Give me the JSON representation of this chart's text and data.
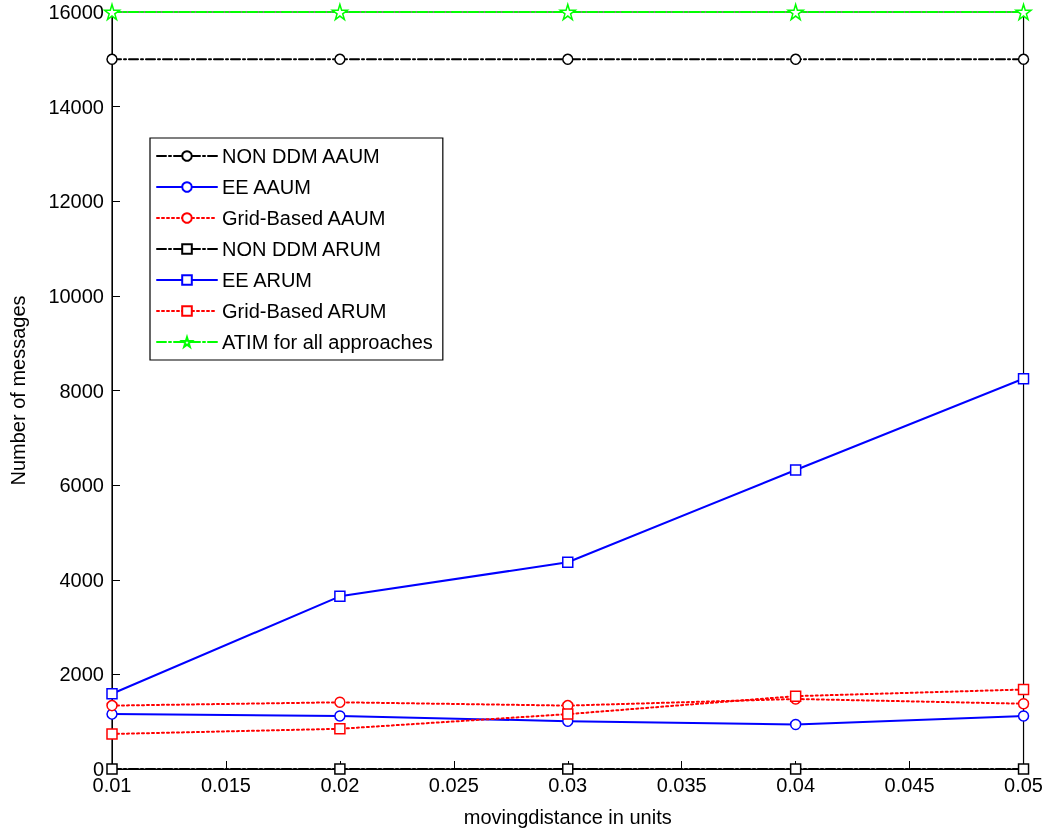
{
  "chart_data": {
    "type": "line",
    "xlabel": "movingdistance in units",
    "ylabel": "Number of messages",
    "x": [
      0.01,
      0.02,
      0.03,
      0.04,
      0.05
    ],
    "series": [
      {
        "name": "NON DDM AAUM",
        "color": "#000000",
        "marker": "circle",
        "line_style": "dashed",
        "values": [
          15000,
          15000,
          15000,
          15000,
          15000
        ]
      },
      {
        "name": "EE AAUM",
        "color": "#0000ff",
        "marker": "circle",
        "line_style": "solid",
        "values": [
          1160,
          1120,
          1010,
          940,
          1120
        ]
      },
      {
        "name": "Grid-Based AAUM",
        "color": "#ff0000",
        "marker": "circle",
        "line_style": "dotted",
        "values": [
          1340,
          1410,
          1340,
          1480,
          1380
        ]
      },
      {
        "name": "NON DDM ARUM",
        "color": "#000000",
        "marker": "square",
        "line_style": "dashed",
        "values": [
          0,
          0,
          0,
          0,
          0
        ]
      },
      {
        "name": "EE ARUM",
        "color": "#0000ff",
        "marker": "square",
        "line_style": "solid",
        "values": [
          1590,
          3650,
          4370,
          6320,
          8250
        ]
      },
      {
        "name": "Grid-Based ARUM",
        "color": "#ff0000",
        "marker": "square",
        "line_style": "dotted",
        "values": [
          740,
          850,
          1160,
          1540,
          1680
        ]
      },
      {
        "name": "ATIM for all approaches",
        "color": "#00ff00",
        "marker": "star",
        "line_style": "dashed",
        "values": [
          16000,
          16000,
          16000,
          16000,
          16000
        ]
      }
    ],
    "xlim": [
      0.01,
      0.05
    ],
    "xticks": [
      0.01,
      0.015,
      0.02,
      0.025,
      0.03,
      0.035,
      0.04,
      0.045,
      0.05
    ],
    "ylim": [
      0,
      16000
    ],
    "yticks": [
      0,
      2000,
      4000,
      6000,
      8000,
      10000,
      12000,
      14000,
      16000
    ],
    "grid": false,
    "legend": "top left"
  }
}
